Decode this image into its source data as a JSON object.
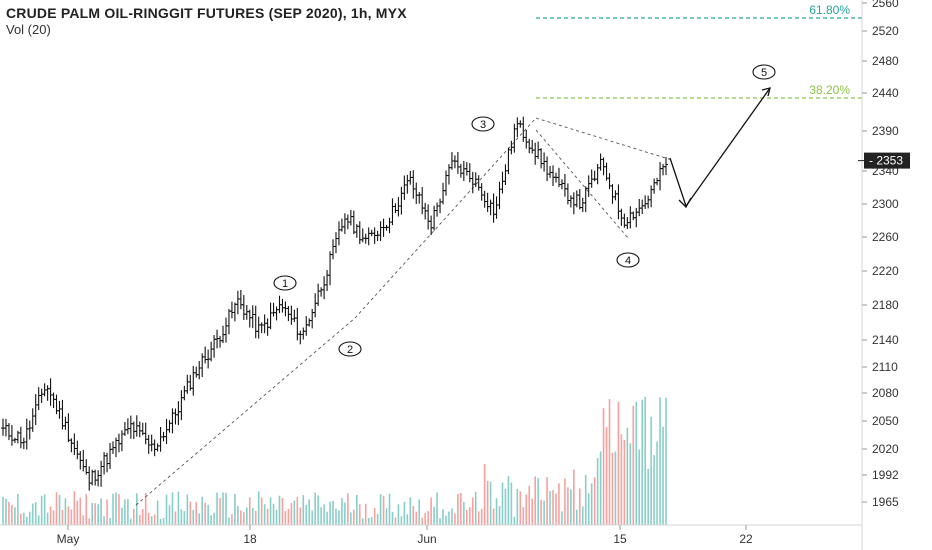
{
  "chart_data": {
    "type": "ohlc",
    "title": "CRUDE PALM OIL-RINGGIT FUTURES (SEP 2020), 1h, MYX",
    "volume_label": "Vol (20)",
    "y_ticks": [
      1965,
      1992,
      2020,
      2050,
      2080,
      2110,
      2140,
      2180,
      2220,
      2260,
      2300,
      2340,
      2390,
      2440,
      2480,
      2520,
      2560
    ],
    "x_ticks": [
      "May",
      "18",
      "Jun",
      "15",
      "22"
    ],
    "last_price": "2353",
    "fib_levels": [
      {
        "label": "61.80%",
        "color": "#26a69a"
      },
      {
        "label": "38.20%",
        "color": "#8bc34a"
      }
    ],
    "wave_labels": [
      "1",
      "2",
      "3",
      "4",
      "5"
    ],
    "ohlc_anchor_closes": [
      2040,
      2030,
      2090,
      2040,
      1985,
      2015,
      2045,
      2020,
      2055,
      2105,
      2140,
      2185,
      2150,
      2180,
      2145,
      2210,
      2285,
      2255,
      2280,
      2330,
      2275,
      2350,
      2330,
      2290,
      2400,
      2360,
      2320,
      2300,
      2350,
      2280,
      2300,
      2350
    ],
    "volume_colors": {
      "up": "#26a69a",
      "down": "#ef5350"
    }
  }
}
